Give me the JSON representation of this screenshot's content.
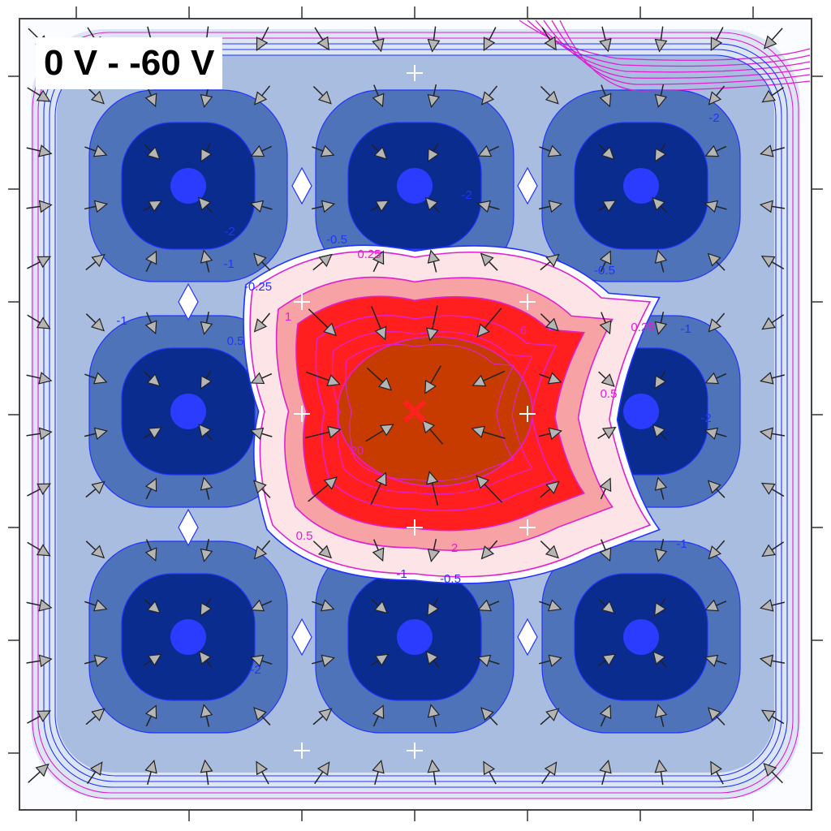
{
  "chart_data": {
    "type": "heatmap",
    "title": "0 V - -60 V",
    "contour_labels": [
      "-0.5",
      "-0.5",
      "-1",
      "-1",
      "-1",
      "-1",
      "-0.5",
      "-0.25",
      "0.5",
      "1",
      "2",
      "6",
      "20",
      "0.25",
      "0.25",
      "0.5",
      "0.5",
      "-1",
      "-2",
      "-2",
      "-2",
      "-2",
      "-2"
    ],
    "wells": [
      {
        "x": 1,
        "y": 1,
        "value": -2.5
      },
      {
        "x": 2,
        "y": 1,
        "value": -2.5
      },
      {
        "x": 3,
        "y": 1,
        "value": -2.5
      },
      {
        "x": 1,
        "y": 2,
        "value": -2.5
      },
      {
        "x": 3,
        "y": 2,
        "value": -2.5
      },
      {
        "x": 1,
        "y": 3,
        "value": -2.5
      },
      {
        "x": 2,
        "y": 3,
        "value": -2.5
      },
      {
        "x": 3,
        "y": 3,
        "value": -2.5
      }
    ],
    "peak": {
      "x": 2,
      "y": 2,
      "value": 20
    },
    "grid": false,
    "colors": {
      "deep_negative": "#0a2c8f",
      "mid_negative": "#4f73b8",
      "light_negative": "#a9bde0",
      "faint_negative": "#dce5f4",
      "core_marker": "#2b3cff",
      "faint_positive": "#fde4e6",
      "light_positive": "#f7a3a6",
      "mid_positive": "#ff1f1f",
      "high_positive": "#c73a00",
      "contour_blue": "#2233ff",
      "contour_magenta": "#e020d0",
      "arrow_fill": "#b5b5b5"
    }
  }
}
